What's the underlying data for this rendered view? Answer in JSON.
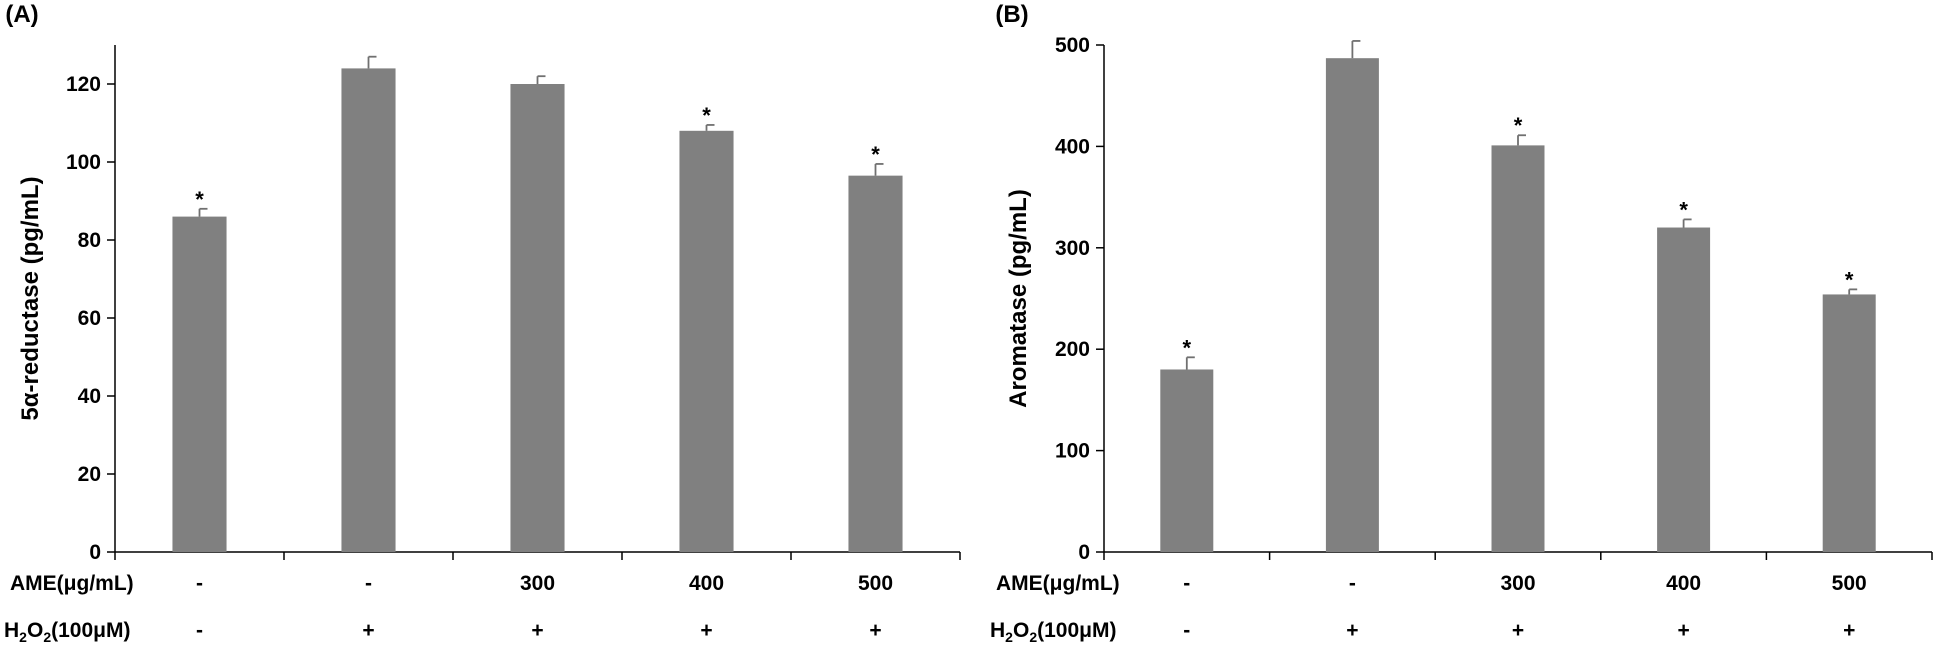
{
  "chart_data": [
    {
      "type": "bar",
      "panel_label": "(A)",
      "ylabel": "5α-reductase (pg/mL)",
      "ylim": [
        0,
        130
      ],
      "yticks": [
        0,
        20,
        40,
        60,
        80,
        100,
        120
      ],
      "values": [
        86,
        124,
        120,
        108,
        96.5
      ],
      "errors": [
        2,
        3,
        2,
        1.5,
        3
      ],
      "significant": [
        true,
        false,
        false,
        true,
        true
      ],
      "star_symbol": "*",
      "bar_color": "#808080",
      "rows": [
        {
          "label": "AME(μg/mL)",
          "values": [
            "-",
            "-",
            "300",
            "400",
            "500"
          ]
        },
        {
          "label_main": "H",
          "label_sub": "2",
          "label_mid": "O",
          "label_sub2": "2",
          "label_rest": "(100μM)",
          "values": [
            "-",
            "+",
            "+",
            "+",
            "+"
          ]
        }
      ]
    },
    {
      "type": "bar",
      "panel_label": "(B)",
      "ylabel": "Aromatase (pg/mL)",
      "ylim": [
        0,
        500
      ],
      "yticks": [
        0,
        100,
        200,
        300,
        400,
        500
      ],
      "values": [
        180,
        487,
        401,
        320,
        254
      ],
      "errors": [
        12,
        17,
        10,
        8,
        5
      ],
      "significant": [
        true,
        false,
        true,
        true,
        true
      ],
      "star_symbol": "*",
      "bar_color": "#808080",
      "rows": [
        {
          "label": "AME(μg/mL)",
          "values": [
            "-",
            "-",
            "300",
            "400",
            "500"
          ]
        },
        {
          "label_main": "H",
          "label_sub": "2",
          "label_mid": "O",
          "label_sub2": "2",
          "label_rest": "(100μM)",
          "values": [
            "-",
            "+",
            "+",
            "+",
            "+"
          ]
        }
      ]
    }
  ]
}
